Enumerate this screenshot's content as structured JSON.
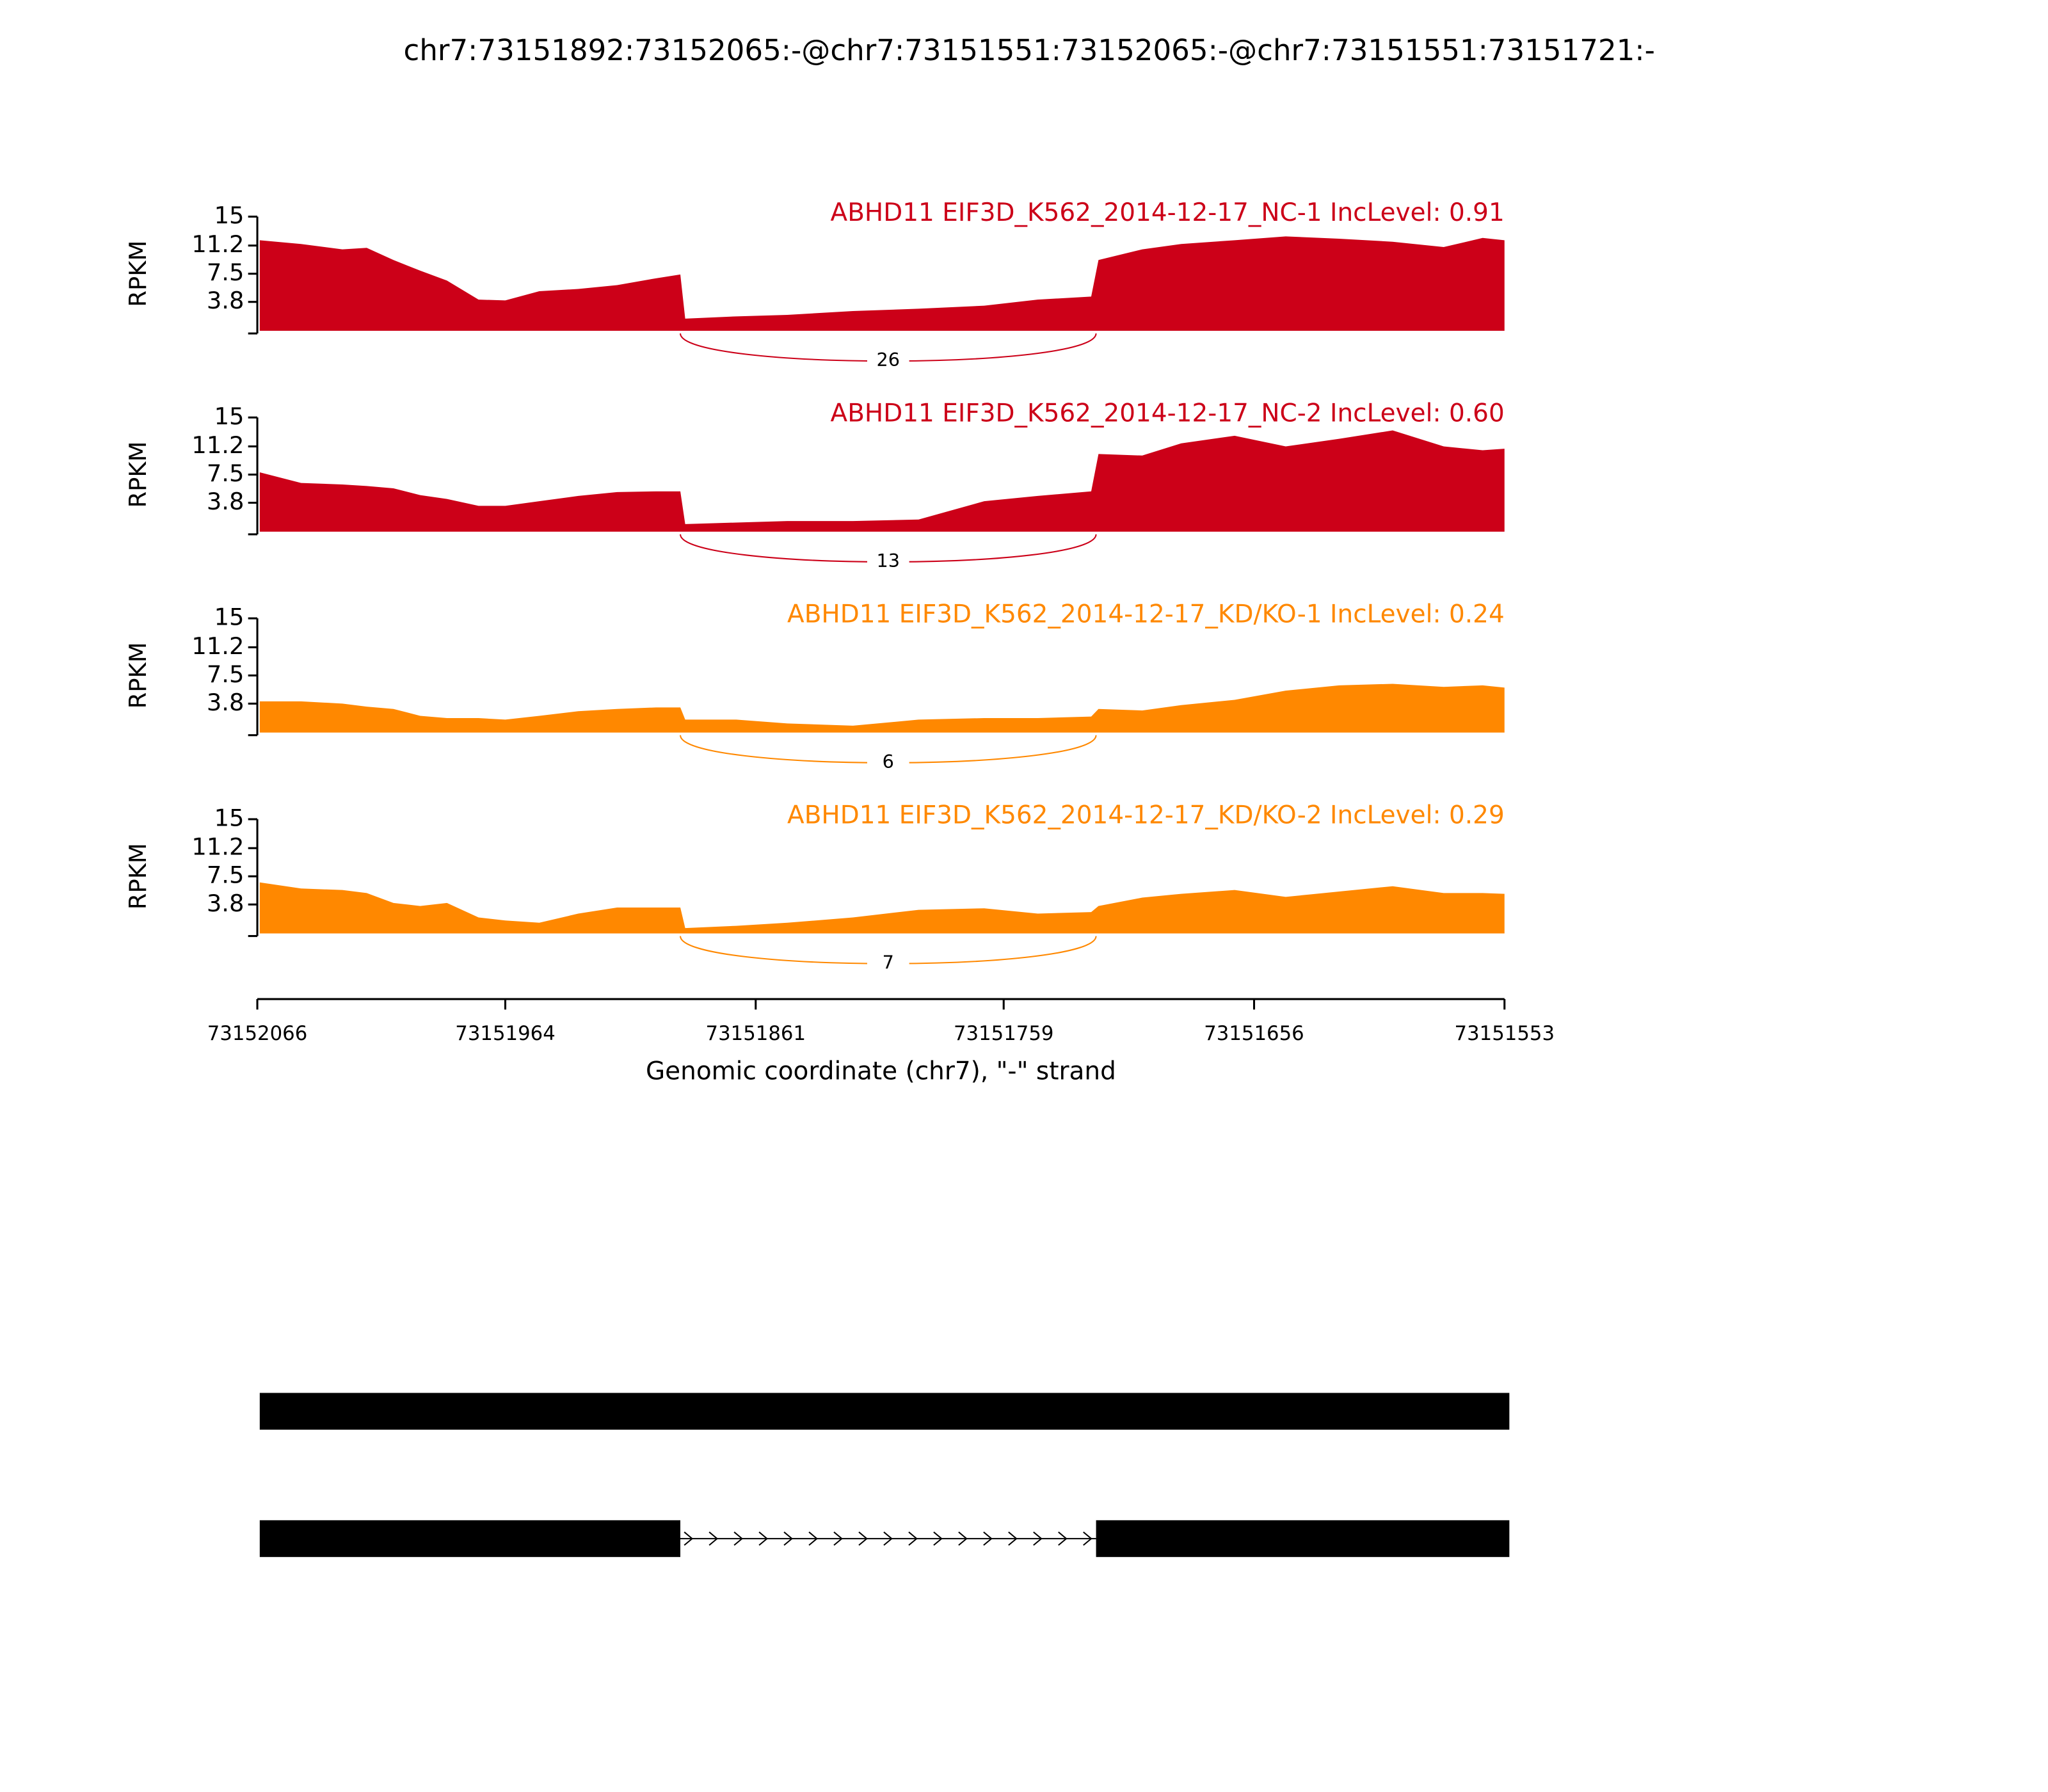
{
  "title": "chr7:73151892:73152065:-@chr7:73151551:73152065:-@chr7:73151551:73151721:-",
  "x_axis": {
    "label": "Genomic coordinate (chr7), \"-\" strand",
    "xlim": [
      73152066,
      73151553
    ],
    "xticks": [
      73152066,
      73151964,
      73151861,
      73151759,
      73151656,
      73151553
    ]
  },
  "chart_data": [
    {
      "type": "area",
      "title": "ABHD11 EIF3D_K562_2014-12-17_NC-1 IncLevel: 0.91",
      "ylabel": "RPKM",
      "color": "#cc0018",
      "ylim": [
        0,
        15
      ],
      "yticks": [
        3.8,
        7.5,
        11.2,
        15
      ],
      "x": [
        73152065,
        73152048,
        73152031,
        73152021,
        73152010,
        73151999,
        73151988,
        73151975,
        73151964,
        73151950,
        73151934,
        73151918,
        73151902,
        73151892,
        73151890,
        73151869,
        73151848,
        73151821,
        73151794,
        73151767,
        73151745,
        73151723,
        73151720,
        73151702,
        73151686,
        73151664,
        73151643,
        73151621,
        73151599,
        73151578,
        73151562,
        73151553
      ],
      "values": [
        11.9,
        11.4,
        10.7,
        10.9,
        9.3,
        7.9,
        6.6,
        4.1,
        4.0,
        5.2,
        5.5,
        6.0,
        6.9,
        7.4,
        1.6,
        1.9,
        2.1,
        2.6,
        2.9,
        3.3,
        4.1,
        4.5,
        9.3,
        10.7,
        11.4,
        11.9,
        12.4,
        12.1,
        11.7,
        11.0,
        12.2,
        11.9
      ],
      "junctions": [
        {
          "start": 73151892,
          "end": 73151721,
          "count": 26
        }
      ]
    },
    {
      "type": "area",
      "title": "ABHD11 EIF3D_K562_2014-12-17_NC-2 IncLevel: 0.60",
      "ylabel": "RPKM",
      "color": "#cc0018",
      "ylim": [
        0,
        15
      ],
      "yticks": [
        3.8,
        7.5,
        11.2,
        15
      ],
      "x": [
        73152065,
        73152048,
        73152031,
        73152021,
        73152010,
        73151999,
        73151988,
        73151975,
        73151964,
        73151950,
        73151934,
        73151918,
        73151902,
        73151892,
        73151890,
        73151869,
        73151848,
        73151821,
        73151794,
        73151767,
        73151745,
        73151723,
        73151720,
        73151702,
        73151686,
        73151664,
        73151643,
        73151621,
        73151599,
        73151578,
        73151562,
        73151553
      ],
      "values": [
        7.8,
        6.4,
        6.2,
        6.0,
        5.7,
        4.8,
        4.3,
        3.4,
        3.4,
        4.0,
        4.7,
        5.2,
        5.3,
        5.3,
        1.0,
        1.2,
        1.4,
        1.4,
        1.6,
        4.0,
        4.7,
        5.3,
        10.2,
        10.0,
        11.6,
        12.6,
        11.2,
        12.2,
        13.3,
        11.2,
        10.7,
        10.9
      ],
      "junctions": [
        {
          "start": 73151892,
          "end": 73151721,
          "count": 13
        }
      ]
    },
    {
      "type": "area",
      "title": "ABHD11 EIF3D_K562_2014-12-17_KD/KO-1 IncLevel: 0.24",
      "ylabel": "RPKM",
      "color": "#ff8800",
      "ylim": [
        0,
        15
      ],
      "yticks": [
        3.8,
        7.5,
        11.2,
        15
      ],
      "x": [
        73152065,
        73152048,
        73152031,
        73152021,
        73152010,
        73151999,
        73151988,
        73151975,
        73151964,
        73151950,
        73151934,
        73151918,
        73151902,
        73151892,
        73151890,
        73151869,
        73151848,
        73151821,
        73151794,
        73151767,
        73151745,
        73151723,
        73151720,
        73151702,
        73151686,
        73151664,
        73151643,
        73151621,
        73151599,
        73151578,
        73151562,
        73151553
      ],
      "values": [
        4.1,
        4.1,
        3.8,
        3.4,
        3.1,
        2.2,
        1.9,
        1.9,
        1.7,
        2.2,
        2.8,
        3.1,
        3.3,
        3.3,
        1.7,
        1.7,
        1.2,
        0.9,
        1.7,
        1.9,
        1.9,
        2.1,
        3.1,
        2.9,
        3.6,
        4.3,
        5.5,
        6.2,
        6.4,
        6.0,
        6.2,
        5.9
      ],
      "junctions": [
        {
          "start": 73151892,
          "end": 73151721,
          "count": 6
        }
      ]
    },
    {
      "type": "area",
      "title": "ABHD11 EIF3D_K562_2014-12-17_KD/KO-2 IncLevel: 0.29",
      "ylabel": "RPKM",
      "color": "#ff8800",
      "ylim": [
        0,
        15
      ],
      "yticks": [
        3.8,
        7.5,
        11.2,
        15
      ],
      "x": [
        73152065,
        73152048,
        73152031,
        73152021,
        73152010,
        73151999,
        73151988,
        73151975,
        73151964,
        73151950,
        73151934,
        73151918,
        73151902,
        73151892,
        73151890,
        73151869,
        73151848,
        73151821,
        73151794,
        73151767,
        73151745,
        73151723,
        73151720,
        73151702,
        73151686,
        73151664,
        73151643,
        73151621,
        73151599,
        73151578,
        73151562,
        73151553
      ],
      "values": [
        6.7,
        5.9,
        5.7,
        5.3,
        4.0,
        3.6,
        4.0,
        2.1,
        1.7,
        1.4,
        2.6,
        3.4,
        3.4,
        3.4,
        0.7,
        1.0,
        1.4,
        2.1,
        3.1,
        3.3,
        2.6,
        2.8,
        3.6,
        4.7,
        5.2,
        5.7,
        4.8,
        5.5,
        6.2,
        5.3,
        5.3,
        5.2
      ],
      "junctions": [
        {
          "start": 73151892,
          "end": 73151721,
          "count": 7
        }
      ]
    }
  ],
  "isoforms": [
    {
      "exons": [
        {
          "start": 73152065,
          "end": 73151551
        }
      ]
    },
    {
      "exons": [
        {
          "start": 73152065,
          "end": 73151892
        },
        {
          "start": 73151721,
          "end": 73151551
        }
      ]
    }
  ]
}
